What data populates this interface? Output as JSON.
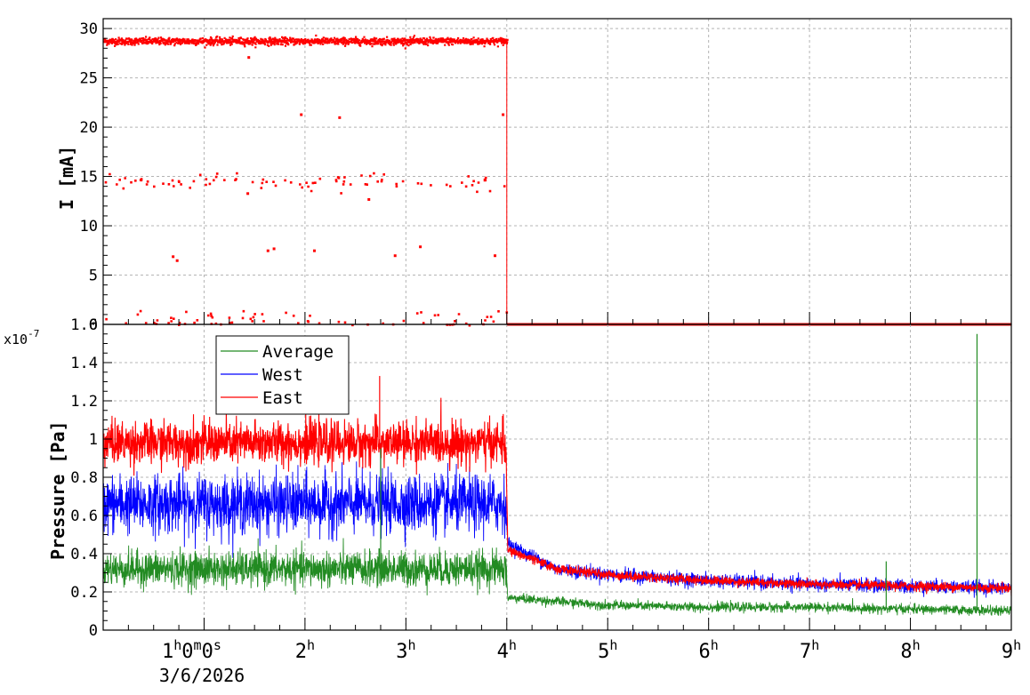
{
  "colors": {
    "current": "#ff0000",
    "average": "#228b22",
    "west": "#0000ff",
    "east": "#ff0000",
    "grid": "#b4b4b4"
  },
  "chart_data": [
    {
      "type": "scatter",
      "panel": "top",
      "ylabel": "I [mA]",
      "xlim_hours": [
        0,
        9
      ],
      "ylim": [
        0,
        31
      ],
      "y_ticks": [
        "0",
        "5",
        "10",
        "15",
        "20",
        "25",
        "30"
      ],
      "grid": true,
      "series": [
        {
          "color": "#ff0000",
          "description_levels_mA": [
            28.8,
            14.6,
            0.5
          ],
          "active_until_hour": 4,
          "after_hour_4_value": 0,
          "outliers": [
            {
              "x": 1.43,
              "y": 27.2
            },
            {
              "x": 1.95,
              "y": 21.4
            },
            {
              "x": 2.33,
              "y": 21.1
            },
            {
              "x": 3.95,
              "y": 21.4
            },
            {
              "x": 0.68,
              "y": 7.0
            },
            {
              "x": 0.72,
              "y": 6.6
            },
            {
              "x": 1.62,
              "y": 7.6
            },
            {
              "x": 1.68,
              "y": 7.8
            },
            {
              "x": 2.08,
              "y": 7.6
            },
            {
              "x": 2.88,
              "y": 7.1
            },
            {
              "x": 3.13,
              "y": 8.0
            },
            {
              "x": 3.87,
              "y": 7.1
            },
            {
              "x": 2.62,
              "y": 12.8
            },
            {
              "x": 1.42,
              "y": 13.4
            }
          ]
        }
      ]
    },
    {
      "type": "line",
      "panel": "bottom",
      "ylabel": "Pressure [Pa]",
      "exponent_label": "x10",
      "exponent_power": "-7",
      "xlim_hours": [
        0,
        9
      ],
      "ylim": [
        0,
        1.6
      ],
      "y_ticks": [
        "0",
        "0.2",
        "0.4",
        "0.6",
        "0.8",
        "1",
        "1.2",
        "1.4",
        "1.6"
      ],
      "x_ticks": [
        {
          "hour": 1,
          "label": "1",
          "sup": "h",
          "rest": "0",
          "sup2": "m",
          "rest2": "0",
          "sup3": "s"
        },
        {
          "hour": 2,
          "label": "2",
          "sup": "h"
        },
        {
          "hour": 3,
          "label": "3",
          "sup": "h"
        },
        {
          "hour": 4,
          "label": "4",
          "sup": "h"
        },
        {
          "hour": 5,
          "label": "5",
          "sup": "h"
        },
        {
          "hour": 6,
          "label": "6",
          "sup": "h"
        },
        {
          "hour": 7,
          "label": "7",
          "sup": "h"
        },
        {
          "hour": 8,
          "label": "8",
          "sup": "h"
        },
        {
          "hour": 9,
          "label": "9",
          "sup": "h"
        }
      ],
      "date_label": "3/6/2026",
      "grid": true,
      "legend_position": "top-left",
      "series": [
        {
          "name": "Average",
          "color": "#228b22",
          "x": [
            0,
            1,
            2,
            3,
            3.99,
            4.01,
            4.5,
            5,
            6,
            7,
            8,
            9
          ],
          "y": [
            0.32,
            0.32,
            0.32,
            0.32,
            0.32,
            0.17,
            0.15,
            0.13,
            0.12,
            0.12,
            0.11,
            0.1
          ],
          "spikes": [
            {
              "x": 2.75,
              "y": 0.95
            },
            {
              "x": 7.76,
              "y": 0.36
            },
            {
              "x": 8.66,
              "y": 1.55
            }
          ]
        },
        {
          "name": "West",
          "color": "#0000ff",
          "x": [
            0,
            1,
            2,
            3,
            3.99,
            4.01,
            4.5,
            5,
            6,
            7,
            8,
            9
          ],
          "y": [
            0.66,
            0.66,
            0.66,
            0.66,
            0.66,
            0.45,
            0.32,
            0.29,
            0.26,
            0.24,
            0.23,
            0.22
          ],
          "spikes": [
            {
              "x": 2.75,
              "y": 0.98
            }
          ]
        },
        {
          "name": "East",
          "color": "#ff0000",
          "x": [
            0,
            1,
            2,
            3,
            3.99,
            4.01,
            4.5,
            5,
            6,
            7,
            8,
            9
          ],
          "y": [
            0.98,
            0.98,
            0.98,
            0.98,
            0.98,
            0.42,
            0.32,
            0.29,
            0.26,
            0.24,
            0.23,
            0.22
          ],
          "spikes": [
            {
              "x": 2.74,
              "y": 1.33
            }
          ]
        }
      ]
    }
  ]
}
